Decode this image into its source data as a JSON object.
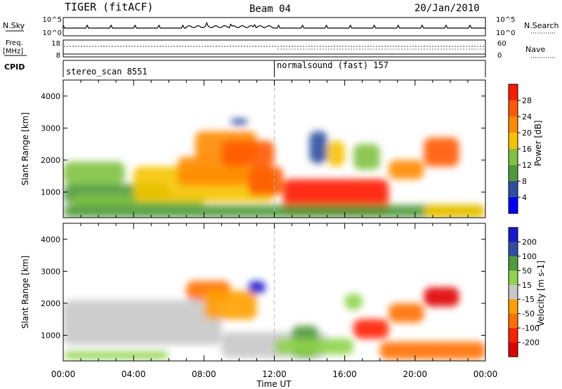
{
  "header": {
    "radar": "TIGER (fitACF)",
    "beam": "Beam 04",
    "date": "20/Jan/2010"
  },
  "nsky_panel": {
    "left_label": "N.Sky",
    "right_label": "N.Search",
    "left_ticks": [
      "10^5",
      "10^0"
    ],
    "right_ticks": [
      "10^5",
      "10^0"
    ]
  },
  "freq_panel": {
    "left_label_line1": "Freq.",
    "left_label_line2": "[MHz]",
    "right_label": "Nave",
    "left_ticks": [
      "18",
      "8"
    ],
    "right_ticks": [
      "60",
      "0"
    ]
  },
  "cpid_panel": {
    "label": "CPID",
    "modes": [
      {
        "name": "stereo_scan 8551",
        "start_hour": 0
      },
      {
        "name": "normalsound (fast) 157",
        "start_hour": 12
      }
    ]
  },
  "chart_data": [
    {
      "type": "heatmap",
      "name": "power",
      "xlabel": "",
      "ylabel": "Slant Range [km]",
      "xlim": [
        0,
        24
      ],
      "ylim": [
        200,
        4500
      ],
      "yticks": [
        1000,
        2000,
        3000,
        4000
      ],
      "colorbar_label": "Power [dB]",
      "colorbar_ticks": [
        "4",
        "8",
        "12",
        "16",
        "20",
        "24",
        "28"
      ],
      "colorbar_colors": [
        "#0000ff",
        "#2e4fa0",
        "#4f9a3c",
        "#7fc241",
        "#f5c400",
        "#ff8a00",
        "#ff5a00",
        "#ff1a00"
      ],
      "blobs": [
        {
          "x": [
            0.0,
            3.5
          ],
          "y": [
            1250,
            1950
          ],
          "level": 3
        },
        {
          "x": [
            0.0,
            6.0
          ],
          "y": [
            650,
            1250
          ],
          "level": 2
        },
        {
          "x": [
            0.5,
            8.0
          ],
          "y": [
            500,
            900
          ],
          "level": 3
        },
        {
          "x": [
            4.0,
            12.0
          ],
          "y": [
            700,
            1800
          ],
          "level": 4
        },
        {
          "x": [
            6.5,
            10.5
          ],
          "y": [
            1200,
            2100
          ],
          "level": 5
        },
        {
          "x": [
            7.5,
            11.0
          ],
          "y": [
            2000,
            2900
          ],
          "level": 5
        },
        {
          "x": [
            9.0,
            12.0
          ],
          "y": [
            1800,
            2600
          ],
          "level": 6
        },
        {
          "x": [
            10.5,
            12.5
          ],
          "y": [
            900,
            1800
          ],
          "level": 6
        },
        {
          "x": [
            12.5,
            18.5
          ],
          "y": [
            300,
            1400
          ],
          "level": 7
        },
        {
          "x": [
            16.5,
            18.0
          ],
          "y": [
            1700,
            2500
          ],
          "level": 3
        },
        {
          "x": [
            18.5,
            20.5
          ],
          "y": [
            1400,
            2000
          ],
          "level": 5
        },
        {
          "x": [
            20.5,
            22.5
          ],
          "y": [
            1800,
            2700
          ],
          "level": 6
        },
        {
          "x": [
            0.0,
            24.0
          ],
          "y": [
            200,
            600
          ],
          "level": 2
        },
        {
          "x": [
            14.0,
            15.0
          ],
          "y": [
            1900,
            2900
          ],
          "level": 1
        },
        {
          "x": [
            15.0,
            16.0
          ],
          "y": [
            1800,
            2600
          ],
          "level": 4
        },
        {
          "x": [
            9.5,
            10.5
          ],
          "y": [
            3100,
            3300
          ],
          "level": 1
        },
        {
          "x": [
            20.5,
            24.0
          ],
          "y": [
            200,
            600
          ],
          "level": 4
        }
      ]
    },
    {
      "type": "heatmap",
      "name": "velocity",
      "xlabel": "Time UT",
      "ylabel": "Slant Range [km]",
      "xlim": [
        0,
        24
      ],
      "ylim": [
        200,
        4500
      ],
      "xticks": [
        "00:00",
        "04:00",
        "08:00",
        "12:00",
        "16:00",
        "20:00",
        "00:00"
      ],
      "yticks": [
        1000,
        2000,
        3000,
        4000
      ],
      "colorbar_label": "Velocity [m s-1]",
      "colorbar_ticks": [
        "200",
        "100",
        "50",
        "15",
        "-15",
        "-50",
        "-100",
        "-200"
      ],
      "colorbar_colors": [
        "#1a1ad0",
        "#2e4fa0",
        "#4f9a3c",
        "#8fd44a",
        "#c8c8c8",
        "#ffa000",
        "#ff7000",
        "#ff2000",
        "#e00000"
      ],
      "blobs": [
        {
          "x": [
            0.0,
            9.0
          ],
          "y": [
            700,
            2100
          ],
          "level": 4
        },
        {
          "x": [
            9.0,
            15.0
          ],
          "y": [
            300,
            1100
          ],
          "level": 4
        },
        {
          "x": [
            0.0,
            6.0
          ],
          "y": [
            250,
            500
          ],
          "level": 3
        },
        {
          "x": [
            7.0,
            9.5
          ],
          "y": [
            2100,
            2700
          ],
          "level": 6
        },
        {
          "x": [
            8.0,
            11.0
          ],
          "y": [
            1500,
            2400
          ],
          "level": 5
        },
        {
          "x": [
            10.5,
            11.5
          ],
          "y": [
            2300,
            2700
          ],
          "level": 0
        },
        {
          "x": [
            13.0,
            14.5
          ],
          "y": [
            300,
            1300
          ],
          "level": 2
        },
        {
          "x": [
            16.5,
            18.5
          ],
          "y": [
            900,
            1500
          ],
          "level": 7
        },
        {
          "x": [
            18.5,
            20.5
          ],
          "y": [
            1400,
            2000
          ],
          "level": 6
        },
        {
          "x": [
            20.5,
            22.5
          ],
          "y": [
            1900,
            2500
          ],
          "level": 8
        },
        {
          "x": [
            18.0,
            24.0
          ],
          "y": [
            250,
            800
          ],
          "level": 6
        },
        {
          "x": [
            12.0,
            16.5
          ],
          "y": [
            400,
            900
          ],
          "level": 3
        },
        {
          "x": [
            16.0,
            17.0
          ],
          "y": [
            1800,
            2300
          ],
          "level": 3
        }
      ]
    }
  ]
}
